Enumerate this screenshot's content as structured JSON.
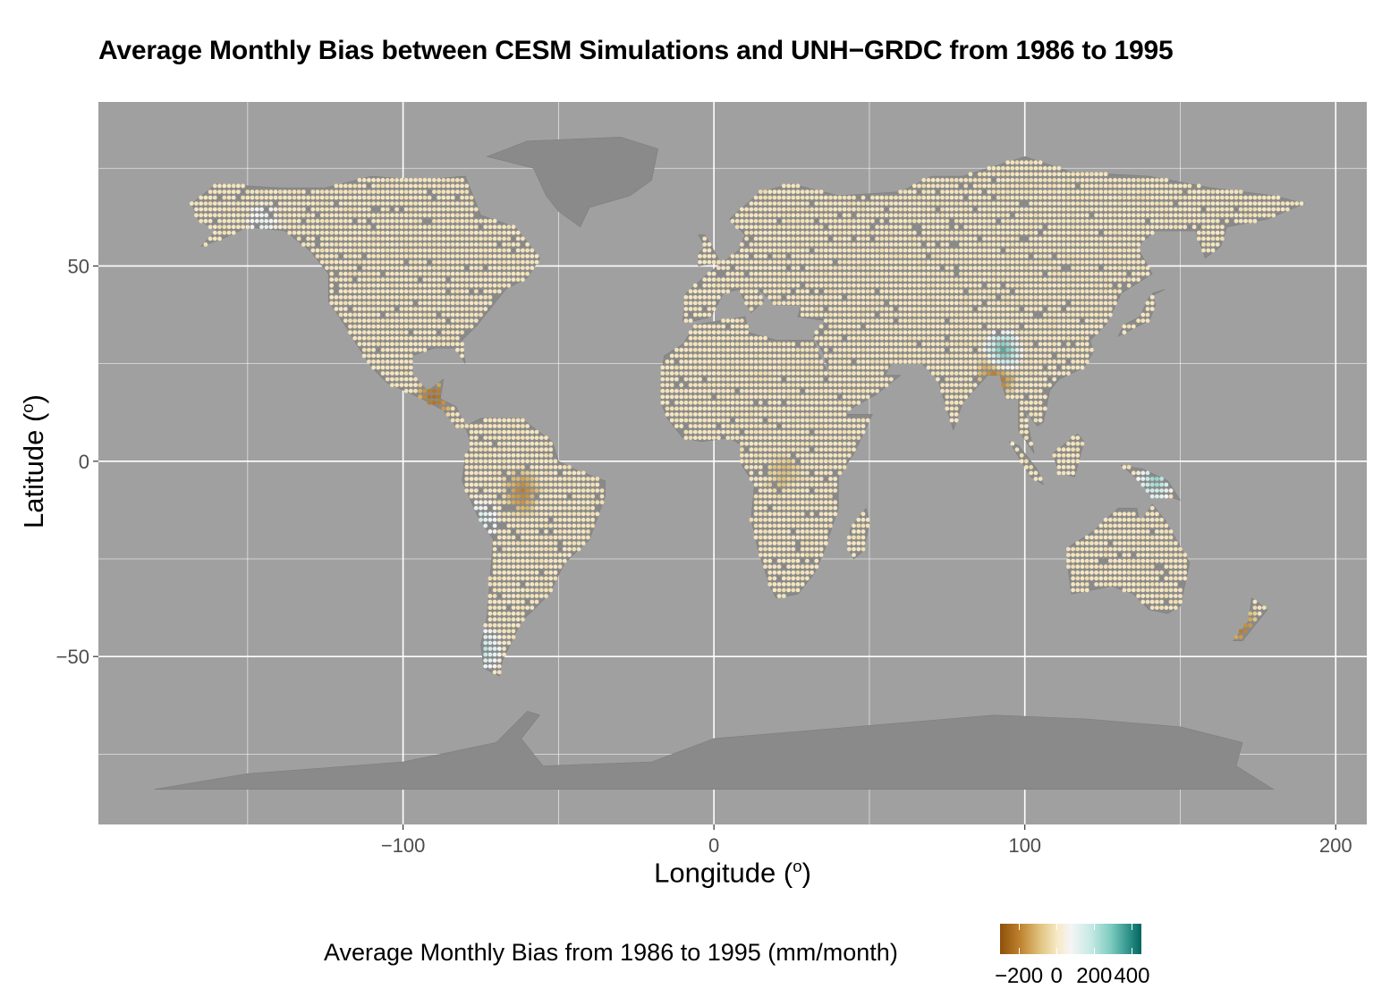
{
  "title": "Average Monthly Bias between CESM Simulations and UNH−GRDC from 1986 to 1995",
  "x_axis": {
    "label": "Longitude (",
    "sup": "o",
    "close": ")"
  },
  "y_axis": {
    "label": "Latitude (",
    "sup": "o",
    "close": ")"
  },
  "legend": {
    "title": "Average Monthly Bias from 1986 to 1995 (mm/month)",
    "ticks": [
      "−200",
      "0",
      "200",
      "400"
    ]
  },
  "chart_data": {
    "type": "heatmap",
    "title": "Average Monthly Bias between CESM Simulations and UNH−GRDC from 1986 to 1995",
    "xlabel": "Longitude (o)",
    "ylabel": "Latitude (o)",
    "xlim": [
      -198,
      210
    ],
    "ylim": [
      -93,
      92
    ],
    "x_ticks": [
      -100,
      0,
      100,
      200
    ],
    "x_tick_labels": [
      "−100",
      "0",
      "100",
      "200"
    ],
    "y_ticks": [
      -50,
      0,
      50
    ],
    "y_tick_labels": [
      "−50",
      "0",
      "50"
    ],
    "grid": true,
    "legend_position": "bottom",
    "colorbar": {
      "label": "Average Monthly Bias from 1986 to 1995 (mm/month)",
      "range": [
        -300,
        450
      ],
      "ticks": [
        -200,
        0,
        200,
        400
      ],
      "colors": [
        "#8c510a",
        "#dfc27d",
        "#f5f5f5",
        "#80cdc1",
        "#01665e"
      ]
    },
    "colors": {
      "panel": "#a0a0a0",
      "land": "#8a8a8a",
      "grid": "#ffffff",
      "typical_bias": "#f3e2bd"
    },
    "regions": [
      {
        "name": "Amazon basin",
        "lon": -62,
        "lat": -8,
        "bias": -150
      },
      {
        "name": "Central America",
        "lon": -90,
        "lat": 16,
        "bias": -220
      },
      {
        "name": "Andes",
        "lon": -75,
        "lat": -15,
        "bias": 150
      },
      {
        "name": "Himalaya",
        "lon": 93,
        "lat": 28,
        "bias": 350
      },
      {
        "name": "Bangladesh",
        "lon": 91,
        "lat": 22,
        "bias": -200
      },
      {
        "name": "New Guinea",
        "lon": 142,
        "lat": -5,
        "bias": 250
      },
      {
        "name": "Southern Chile",
        "lon": -74,
        "lat": -48,
        "bias": 200
      },
      {
        "name": "Congo basin",
        "lon": 22,
        "lat": -3,
        "bias": -60
      },
      {
        "name": "Alaska coast",
        "lon": -145,
        "lat": 61,
        "bias": 100
      },
      {
        "name": "New Zealand",
        "lon": 170,
        "lat": -43,
        "bias": -150
      }
    ]
  }
}
